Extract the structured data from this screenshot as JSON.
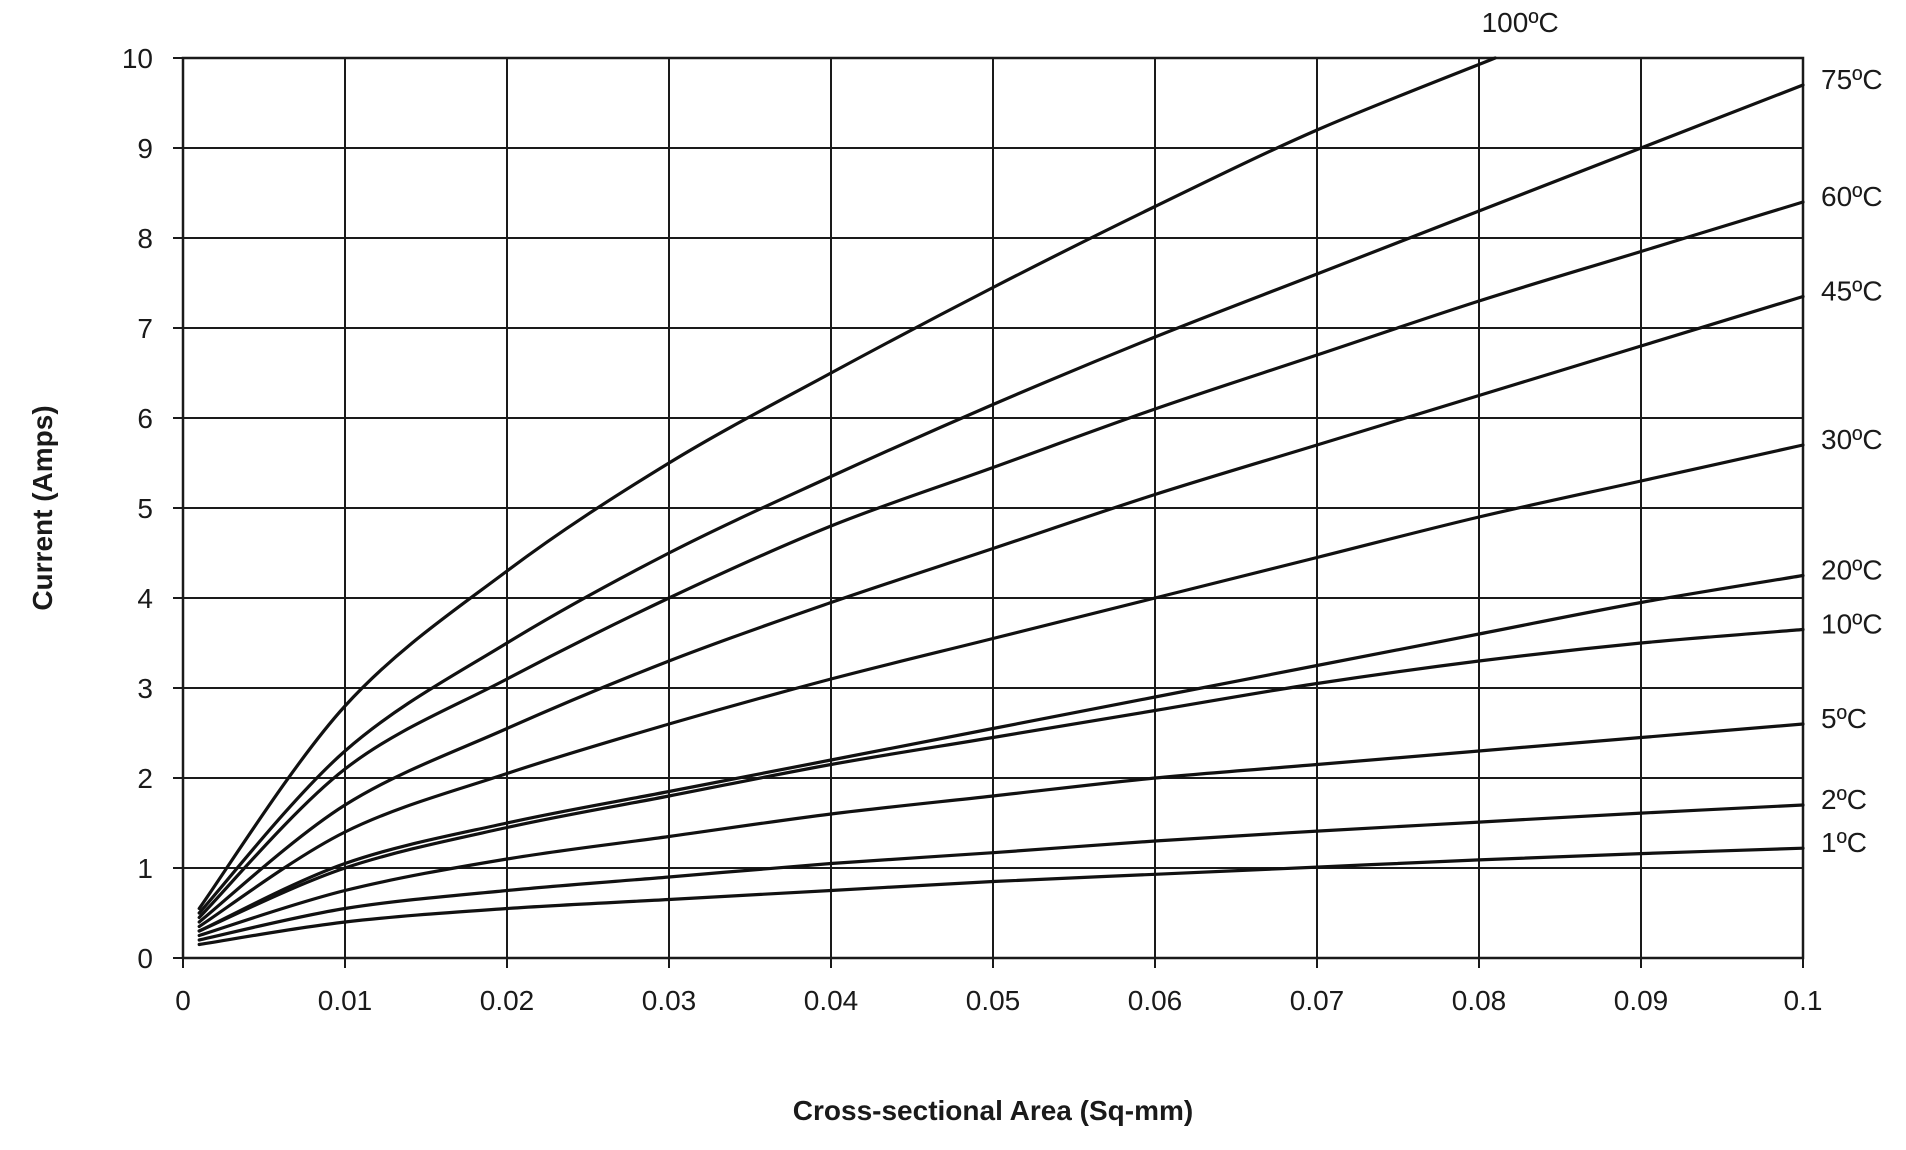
{
  "chart_data": {
    "type": "line",
    "xlabel": "Cross-sectional Area (Sq-mm)",
    "ylabel": "Current (Amps)",
    "xlim": [
      0,
      0.1
    ],
    "ylim": [
      0,
      10
    ],
    "x_ticks": [
      "0",
      "0.01",
      "0.02",
      "0.03",
      "0.04",
      "0.05",
      "0.06",
      "0.07",
      "0.08",
      "0.09",
      "0.1"
    ],
    "y_ticks": [
      "0",
      "1",
      "2",
      "3",
      "4",
      "5",
      "6",
      "7",
      "8",
      "9",
      "10"
    ],
    "grid": true,
    "legend": "series labels at right end of each curve",
    "series": [
      {
        "name": "100ºC",
        "x": [
          0.001,
          0.01,
          0.02,
          0.03,
          0.04,
          0.05,
          0.06,
          0.07,
          0.081
        ],
        "values": [
          0.55,
          2.8,
          4.3,
          5.5,
          6.5,
          7.45,
          8.35,
          9.2,
          10.0
        ]
      },
      {
        "name": "75ºC",
        "x": [
          0.001,
          0.01,
          0.02,
          0.03,
          0.04,
          0.05,
          0.06,
          0.07,
          0.08,
          0.09,
          0.1
        ],
        "values": [
          0.5,
          2.3,
          3.5,
          4.5,
          5.35,
          6.15,
          6.9,
          7.6,
          8.3,
          9.0,
          9.7
        ]
      },
      {
        "name": "60ºC",
        "x": [
          0.001,
          0.01,
          0.02,
          0.03,
          0.04,
          0.05,
          0.06,
          0.07,
          0.08,
          0.09,
          0.1
        ],
        "values": [
          0.45,
          2.1,
          3.1,
          4.0,
          4.8,
          5.45,
          6.1,
          6.7,
          7.3,
          7.85,
          8.4
        ]
      },
      {
        "name": "45ºC",
        "x": [
          0.001,
          0.01,
          0.02,
          0.03,
          0.04,
          0.05,
          0.06,
          0.07,
          0.08,
          0.09,
          0.1
        ],
        "values": [
          0.4,
          1.7,
          2.55,
          3.3,
          3.95,
          4.55,
          5.15,
          5.7,
          6.25,
          6.8,
          7.35
        ]
      },
      {
        "name": "30ºC",
        "x": [
          0.001,
          0.01,
          0.02,
          0.03,
          0.04,
          0.05,
          0.06,
          0.07,
          0.08,
          0.09,
          0.1
        ],
        "values": [
          0.35,
          1.4,
          2.05,
          2.6,
          3.1,
          3.55,
          4.0,
          4.45,
          4.9,
          5.3,
          5.7
        ]
      },
      {
        "name": "20ºC",
        "x": [
          0.001,
          0.01,
          0.02,
          0.03,
          0.04,
          0.05,
          0.06,
          0.07,
          0.08,
          0.09,
          0.1
        ],
        "values": [
          0.3,
          1.05,
          1.5,
          1.85,
          2.2,
          2.55,
          2.9,
          3.25,
          3.6,
          3.95,
          4.25
        ]
      },
      {
        "name": "10ºC",
        "x": [
          0.001,
          0.01,
          0.02,
          0.03,
          0.04,
          0.05,
          0.06,
          0.07,
          0.08,
          0.09,
          0.1
        ],
        "values": [
          0.3,
          1.0,
          1.45,
          1.8,
          2.15,
          2.45,
          2.75,
          3.05,
          3.3,
          3.5,
          3.65
        ]
      },
      {
        "name": "5ºC",
        "x": [
          0.001,
          0.01,
          0.02,
          0.03,
          0.04,
          0.05,
          0.06,
          0.07,
          0.08,
          0.09,
          0.1
        ],
        "values": [
          0.25,
          0.75,
          1.1,
          1.35,
          1.6,
          1.8,
          2.0,
          2.15,
          2.3,
          2.45,
          2.6
        ]
      },
      {
        "name": "2ºC",
        "x": [
          0.001,
          0.01,
          0.02,
          0.03,
          0.04,
          0.05,
          0.06,
          0.07,
          0.08,
          0.09,
          0.1
        ],
        "values": [
          0.2,
          0.55,
          0.75,
          0.9,
          1.05,
          1.17,
          1.3,
          1.41,
          1.51,
          1.61,
          1.7
        ]
      },
      {
        "name": "1ºC",
        "x": [
          0.001,
          0.01,
          0.02,
          0.03,
          0.04,
          0.05,
          0.06,
          0.07,
          0.08,
          0.09,
          0.1
        ],
        "values": [
          0.15,
          0.4,
          0.55,
          0.65,
          0.75,
          0.85,
          0.93,
          1.01,
          1.09,
          1.16,
          1.22
        ]
      }
    ]
  }
}
